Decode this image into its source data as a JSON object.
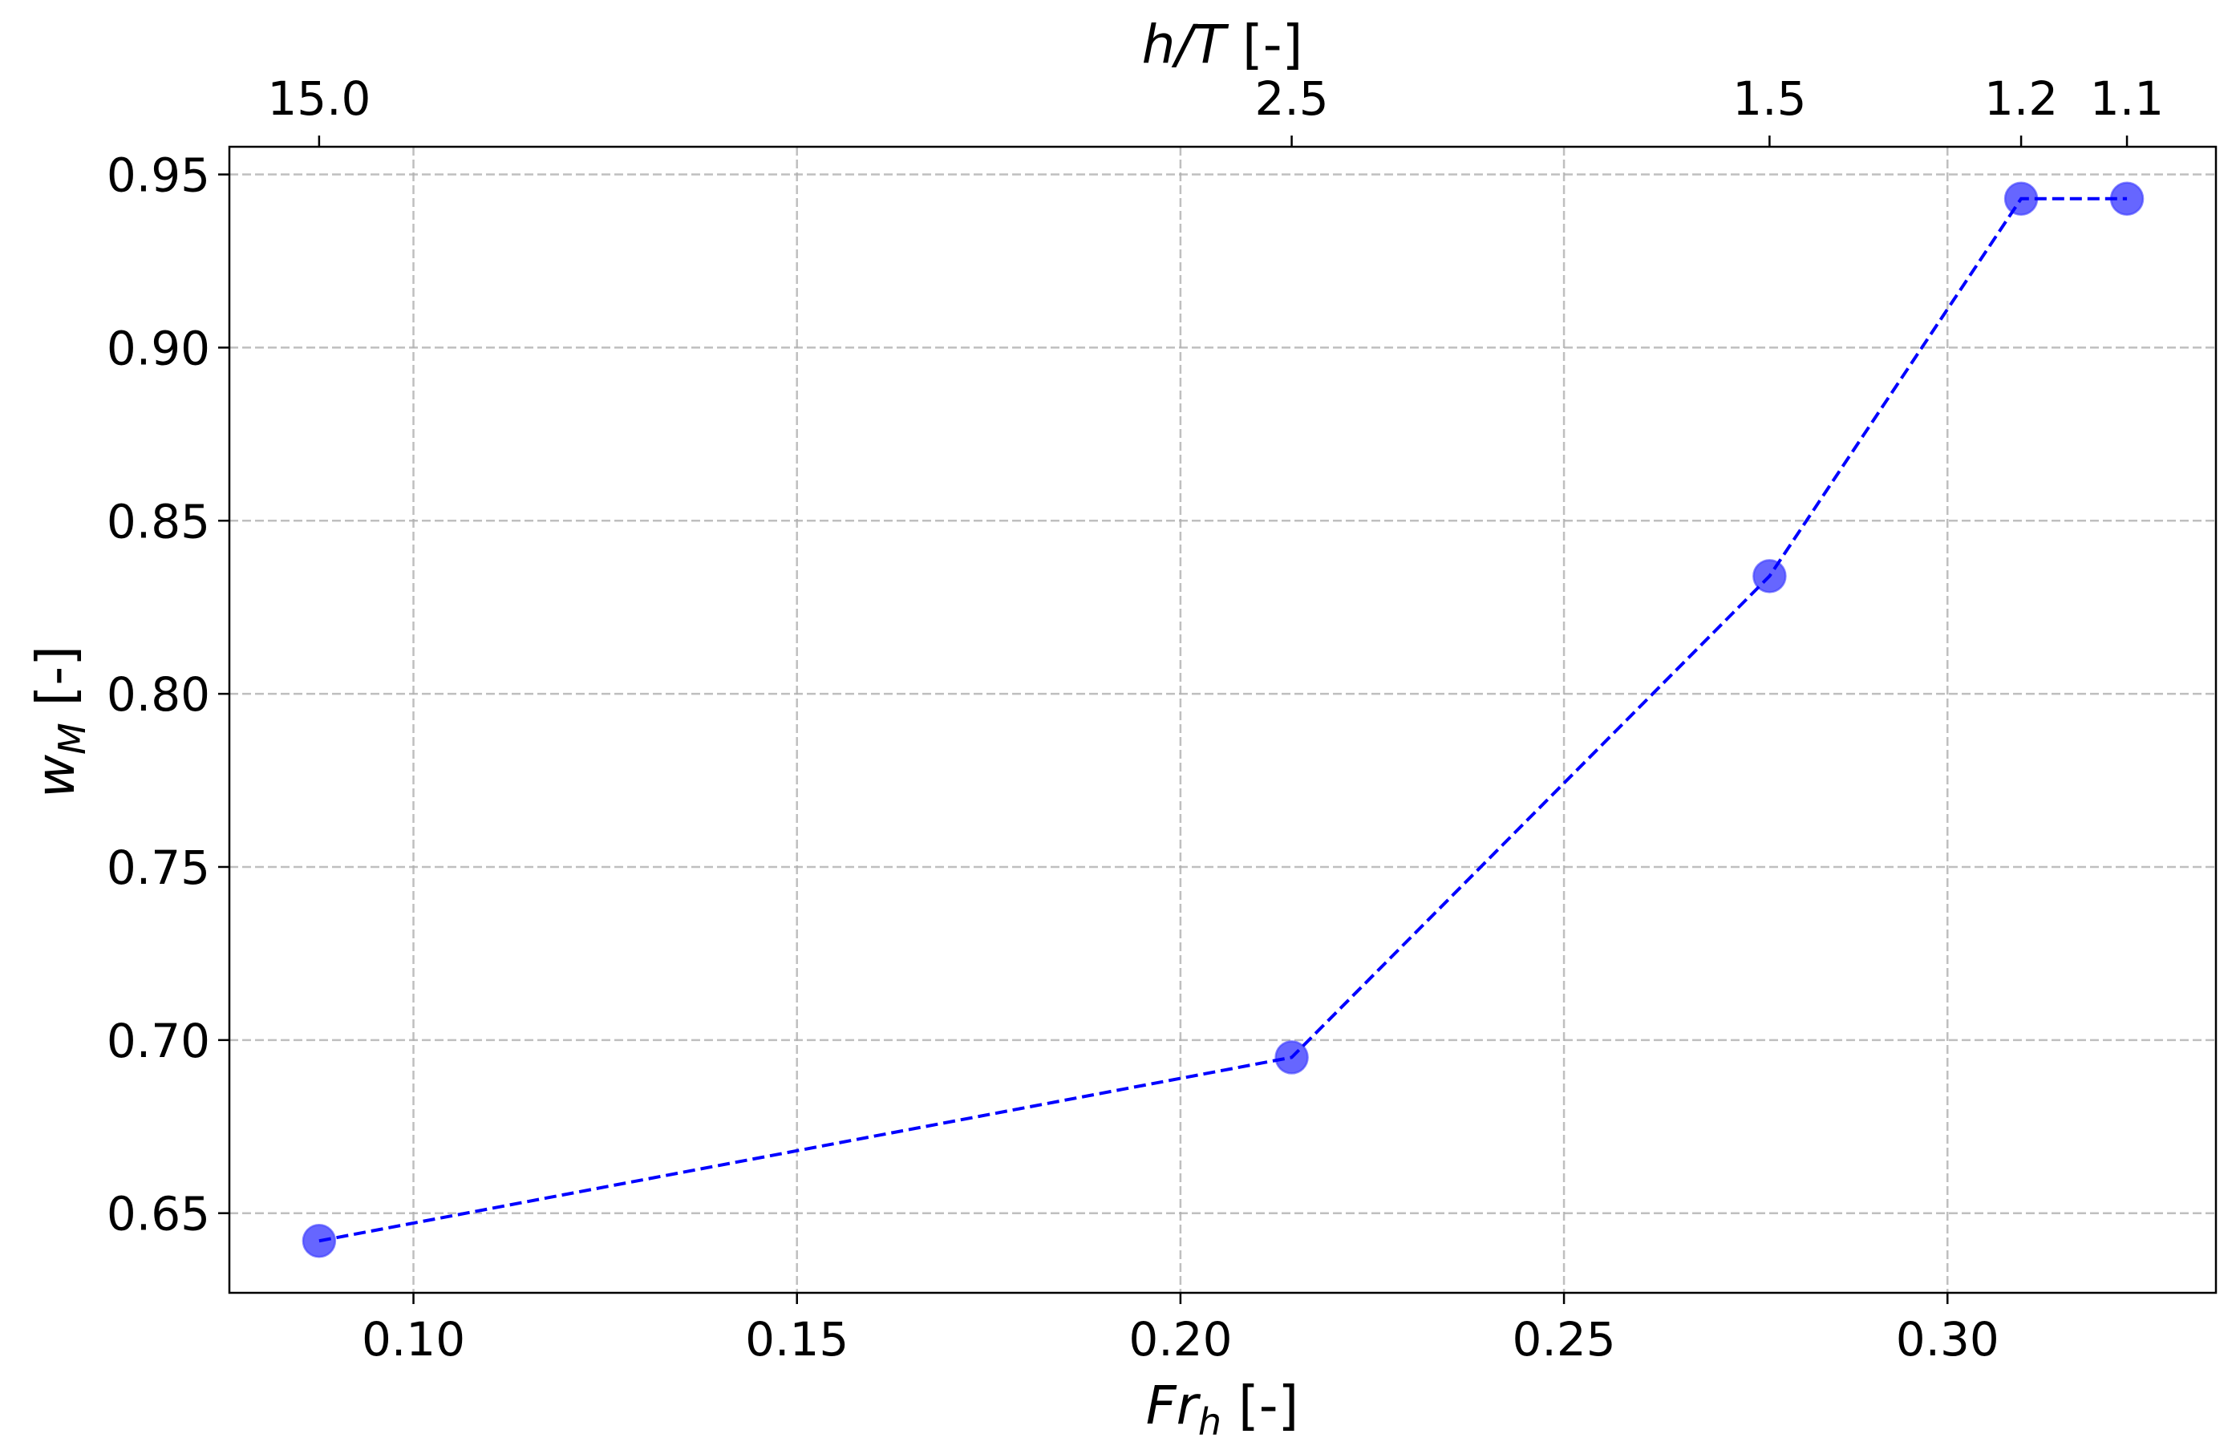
{
  "chart_data": {
    "type": "line",
    "title": "",
    "xlabel": "Fr_h [-]",
    "xlabel_parts": {
      "main": "Fr",
      "sub": "h",
      "unit": " [-]"
    },
    "ylabel": "w_M [-]",
    "ylabel_parts": {
      "main": "w",
      "sub": "M",
      "unit": " [-]"
    },
    "top_xlabel": "h/T [-]",
    "top_xlabel_parts": {
      "main": "h/T",
      "unit": " [-]"
    },
    "xlim": [
      0.076,
      0.335
    ],
    "ylim": [
      0.627,
      0.958
    ],
    "grid": true,
    "legend": null,
    "x_ticks": [
      0.1,
      0.15,
      0.2,
      0.25,
      0.3
    ],
    "x_tick_labels": [
      "0.10",
      "0.15",
      "0.20",
      "0.25",
      "0.30"
    ],
    "y_ticks": [
      0.65,
      0.7,
      0.75,
      0.8,
      0.85,
      0.9,
      0.95
    ],
    "y_tick_labels": [
      "0.65",
      "0.70",
      "0.75",
      "0.80",
      "0.85",
      "0.90",
      "0.95"
    ],
    "top_ticks": [
      0.0877,
      0.2145,
      0.2768,
      0.3096,
      0.3234
    ],
    "top_tick_labels": [
      "15.0",
      "2.5",
      "1.5",
      "1.2",
      "1.1"
    ],
    "series": [
      {
        "name": "w_M",
        "color": "#0000ff",
        "marker_color": "#5555ff",
        "linestyle": "dashed",
        "marker": "o",
        "x": [
          0.0877,
          0.2145,
          0.2768,
          0.3096,
          0.3234
        ],
        "y": [
          0.642,
          0.695,
          0.834,
          0.943,
          0.943
        ],
        "h_over_T": [
          15.0,
          2.5,
          1.5,
          1.2,
          1.1
        ]
      }
    ]
  }
}
